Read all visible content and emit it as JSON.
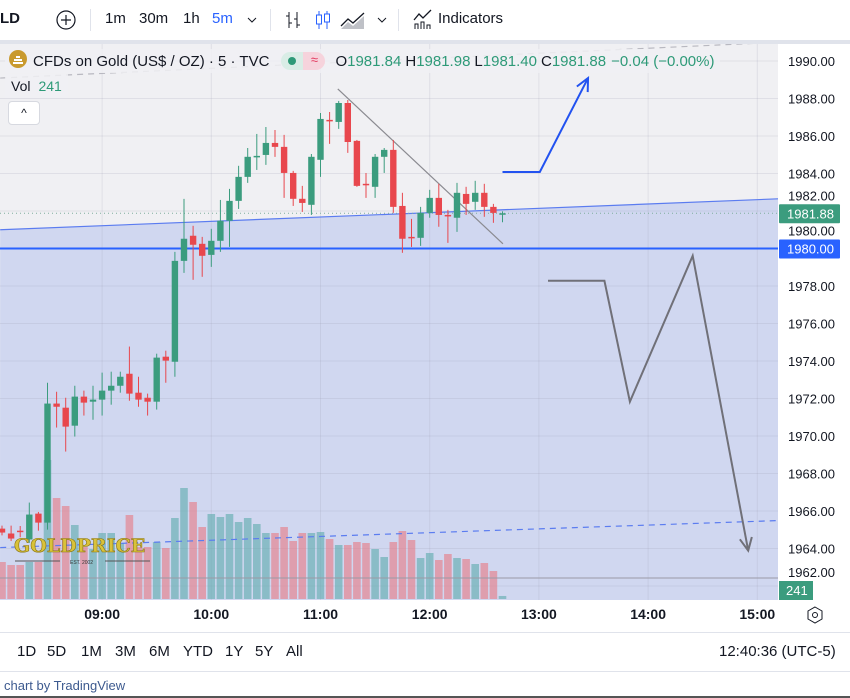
{
  "toolbar": {
    "symbol_partial": "LD",
    "intervals": [
      "1m",
      "30m",
      "1h",
      "5m"
    ],
    "active_interval": "5m",
    "indicators_label": "Indicators",
    "icons": [
      "plus-circle-icon",
      "bars-icon",
      "candles-icon",
      "area-icon",
      "chevron-down-icon",
      "indicators-icon"
    ]
  },
  "legend": {
    "title": "CFDs on Gold (US$ / OZ) · 5 · TVC",
    "o_label": "O",
    "o": "1981.84",
    "h_label": "H",
    "h": "1981.98",
    "l_label": "L",
    "l": "1981.40",
    "c_label": "C",
    "c": "1981.88",
    "change": "−0.04 (−0.00%)",
    "vol_label": "Vol",
    "vol": "241",
    "collapse": "^"
  },
  "colors": {
    "up": "#3b9c7e",
    "down": "#e8474d",
    "accent": "#2962ff",
    "fill": "#d0d7f0",
    "label_green": "#3b9c7e"
  },
  "chart_data": {
    "type": "candlestick",
    "title": "CFDs on Gold (US$ / OZ) · 5 · TVC",
    "ylim": [
      1962,
      1991
    ],
    "price_ticks": [
      "1990.00",
      "1988.00",
      "1986.00",
      "1984.00",
      "1982.00",
      "1980.00",
      "1978.00",
      "1976.00",
      "1974.00",
      "1972.00",
      "1970.00",
      "1968.00",
      "1966.00",
      "1964.00",
      "1962.00"
    ],
    "time_ticks": [
      {
        "label": "09:00",
        "bar": 11
      },
      {
        "label": "10:00",
        "bar": 23
      },
      {
        "label": "11:00",
        "bar": 35
      },
      {
        "label": "12:00",
        "bar": 47
      },
      {
        "label": "13:00",
        "bar": 59
      },
      {
        "label": "14:00",
        "bar": 71
      },
      {
        "label": "15:00",
        "bar": 83
      }
    ],
    "last_price": "1981.88",
    "hline_price": "1980.00",
    "last_volume": "241",
    "candles_fields": [
      "time",
      "open",
      "high",
      "low",
      "close",
      "volume"
    ],
    "candles": [
      [
        "08:05",
        1965.06,
        1965.22,
        1964.7,
        1964.85,
        2960
      ],
      [
        "08:10",
        1964.8,
        1965.22,
        1964.4,
        1964.53,
        2720
      ],
      [
        "08:15",
        1964.95,
        1965.2,
        1964.6,
        1964.9,
        2720
      ],
      [
        "08:20",
        1964.48,
        1966.45,
        1964.3,
        1965.81,
        2960
      ],
      [
        "08:25",
        1965.86,
        1965.95,
        1964.95,
        1965.38,
        2960
      ],
      [
        "08:30",
        1965.38,
        1972.84,
        1965.01,
        1971.73,
        11120
      ],
      [
        "08:35",
        1971.73,
        1972.36,
        1970.45,
        1971.56,
        8080
      ],
      [
        "08:40",
        1971.51,
        1972.04,
        1969.17,
        1970.5,
        7440
      ],
      [
        "08:45",
        1970.55,
        1972.68,
        1969.97,
        1972.1,
        5920
      ],
      [
        "08:50",
        1972.1,
        1972.42,
        1971.09,
        1971.78,
        4160
      ],
      [
        "08:55",
        1971.83,
        1972.68,
        1970.87,
        1971.94,
        4000
      ],
      [
        "09:00",
        1971.94,
        1973.38,
        1971.09,
        1972.42,
        5280
      ],
      [
        "09:05",
        1972.42,
        1973.43,
        1971.67,
        1972.68,
        5280
      ],
      [
        "09:10",
        1972.68,
        1973.43,
        1972.31,
        1973.16,
        4480
      ],
      [
        "09:15",
        1973.32,
        1974.77,
        1971.88,
        1972.26,
        6720
      ],
      [
        "09:20",
        1972.31,
        1973.16,
        1971.56,
        1971.94,
        4160
      ],
      [
        "09:25",
        1972.04,
        1972.26,
        1971.09,
        1971.83,
        4160
      ],
      [
        "09:30",
        1971.83,
        1974.39,
        1971.41,
        1974.18,
        4560
      ],
      [
        "09:35",
        1974.23,
        1974.55,
        1972.84,
        1974.02,
        4080
      ],
      [
        "09:40",
        1973.96,
        1979.82,
        1973.16,
        1979.34,
        6480
      ],
      [
        "09:45",
        1979.34,
        1982.65,
        1978.7,
        1980.52,
        8880
      ],
      [
        "09:50",
        1980.68,
        1981.21,
        1978.33,
        1980.2,
        7760
      ],
      [
        "09:55",
        1980.25,
        1980.62,
        1978.49,
        1979.61,
        5760
      ],
      [
        "10:00",
        1979.66,
        1981.05,
        1979.02,
        1980.41,
        6800
      ],
      [
        "10:05",
        1980.41,
        1982.59,
        1979.82,
        1981.48,
        6560
      ],
      [
        "10:10",
        1981.48,
        1983.18,
        1980.09,
        1982.54,
        6800
      ],
      [
        "10:15",
        1982.54,
        1984.41,
        1982.11,
        1983.82,
        6160
      ],
      [
        "10:20",
        1983.82,
        1985.36,
        1983.5,
        1984.89,
        6480
      ],
      [
        "10:25",
        1984.89,
        1986.11,
        1984.19,
        1984.94,
        6000
      ],
      [
        "10:30",
        1984.99,
        1986.48,
        1984.46,
        1985.63,
        5280
      ],
      [
        "10:35",
        1985.63,
        1986.32,
        1984.89,
        1985.42,
        5280
      ],
      [
        "10:40",
        1985.42,
        1986.06,
        1982.7,
        1984.03,
        5760
      ],
      [
        "10:45",
        1984.03,
        1984.14,
        1982.27,
        1982.65,
        4640
      ],
      [
        "10:50",
        1982.65,
        1983.34,
        1981.95,
        1982.43,
        5280
      ],
      [
        "10:55",
        1982.33,
        1985.04,
        1981.79,
        1984.89,
        5280
      ],
      [
        "11:00",
        1984.73,
        1987.23,
        1983.82,
        1986.91,
        5360
      ],
      [
        "11:05",
        1986.86,
        1987.28,
        1985.58,
        1986.8,
        4800
      ],
      [
        "11:10",
        1986.75,
        1987.87,
        1986.38,
        1987.76,
        4320
      ],
      [
        "11:15",
        1987.76,
        1987.92,
        1985.1,
        1985.68,
        4320
      ],
      [
        "11:20",
        1985.74,
        1985.79,
        1983.29,
        1983.34,
        4560
      ],
      [
        "11:25",
        1983.45,
        1984.03,
        1982.7,
        1983.4,
        4480
      ],
      [
        "11:30",
        1983.29,
        1985.04,
        1982.7,
        1984.89,
        4000
      ],
      [
        "11:35",
        1984.89,
        1985.36,
        1984.03,
        1985.26,
        3360
      ],
      [
        "11:40",
        1985.26,
        1985.79,
        1981.9,
        1982.22,
        4560
      ],
      [
        "11:45",
        1982.27,
        1982.97,
        1979.77,
        1980.52,
        5440
      ],
      [
        "11:50",
        1980.62,
        1981.58,
        1980.09,
        1980.57,
        4720
      ],
      [
        "11:55",
        1980.57,
        1982.22,
        1980.14,
        1981.9,
        3280
      ],
      [
        "12:00",
        1981.9,
        1983.13,
        1981.64,
        1982.7,
        3680
      ],
      [
        "12:05",
        1982.7,
        1983.45,
        1981.16,
        1981.79,
        3120
      ],
      [
        "12:10",
        1981.79,
        1982.06,
        1980.3,
        1981.74,
        3600
      ],
      [
        "12:15",
        1981.64,
        1983.5,
        1980.89,
        1982.97,
        3280
      ],
      [
        "12:20",
        1982.91,
        1983.29,
        1981.79,
        1982.38,
        3200
      ],
      [
        "12:25",
        1982.49,
        1983.61,
        1982.06,
        1982.97,
        2800
      ],
      [
        "12:30",
        1982.97,
        1983.45,
        1981.69,
        1982.22,
        2880
      ],
      [
        "12:35",
        1982.22,
        1982.38,
        1981.37,
        1981.9,
        2240
      ],
      [
        "12:40",
        1981.84,
        1981.98,
        1981.4,
        1981.88,
        241
      ]
    ],
    "drawings": {
      "channel_mid": [
        [
          -0.2,
          1981.0
        ],
        [
          85.3,
          1982.65
        ]
      ],
      "channel_upper": [
        [
          -0.2,
          1989.09
        ],
        [
          85.3,
          1991.0
        ]
      ],
      "channel_lower": [
        [
          -0.2,
          1964.05
        ],
        [
          85.3,
          1965.49
        ]
      ],
      "downtrend": [
        [
          36.9,
          1988.51
        ],
        [
          55.05,
          1980.25
        ]
      ],
      "bull_path": [
        [
          55,
          1984.08
        ],
        [
          59.1,
          1984.08
        ],
        [
          64.4,
          1989.09
        ]
      ],
      "bear_path": [
        [
          60,
          1978.28
        ],
        [
          66.2,
          1978.28
        ],
        [
          69,
          1971.83
        ],
        [
          75.9,
          1979.61
        ],
        [
          82,
          1963.89
        ]
      ]
    }
  },
  "watermark": {
    "text": "GOLDPRICE",
    "sub": "EST. 2002"
  },
  "ranges": [
    "1D",
    "5D",
    "1M",
    "3M",
    "6M",
    "YTD",
    "1Y",
    "5Y",
    "All"
  ],
  "clock": "12:40:36 (UTC-5)",
  "footer": "chart by TradingView"
}
